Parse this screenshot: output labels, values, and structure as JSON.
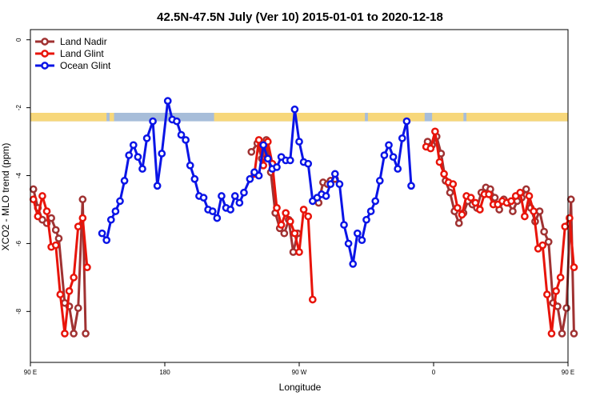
{
  "chart_data": {
    "type": "line",
    "title": "42.5N-47.5N July (Ver 10)   2015-01-01 to 2020-12-18",
    "xlabel": "Longitude",
    "ylabel": "XCO2 - MLO trend (ppm)",
    "xlim": [
      90,
      450
    ],
    "ylim": [
      -9.5,
      0.3
    ],
    "x_ticks": [
      {
        "value": 90,
        "label": "90 E"
      },
      {
        "value": 180,
        "label": "180"
      },
      {
        "value": 270,
        "label": "90 W"
      },
      {
        "value": 360,
        "label": "0"
      },
      {
        "value": 450,
        "label": "90 E"
      },
      {
        "value": 540,
        "label": "180"
      }
    ],
    "y_ticks": [
      0,
      -2,
      -4,
      -6,
      -8
    ],
    "grid": false,
    "legend_position": "top-left",
    "land_ocean_band": {
      "y_range": [
        -2.4,
        -2.15
      ],
      "land_color": "#f7d77a",
      "ocean_color": "#a7bdd9",
      "land_segments": [
        [
          90,
          141
        ],
        [
          143,
          146
        ],
        [
          213,
          314
        ],
        [
          316,
          354
        ],
        [
          359,
          380
        ],
        [
          382,
          476
        ],
        [
          478,
          488
        ]
      ]
    },
    "series": [
      {
        "name": "Land Nadir",
        "color": "#a03232",
        "points": [
          [
            92,
            -4.4
          ],
          [
            95,
            -4.95
          ],
          [
            98,
            -5.3
          ],
          [
            101,
            -5.4
          ],
          [
            104,
            -5.25
          ],
          [
            107,
            -5.6
          ],
          [
            109,
            -5.85
          ],
          [
            113,
            -7.75
          ],
          [
            116,
            -7.85
          ],
          [
            119,
            -8.65
          ],
          [
            122,
            -7.9
          ],
          [
            125,
            -4.7
          ],
          [
            127,
            -8.65
          ],
          [
            238,
            -3.3
          ],
          [
            242,
            -3.05
          ],
          [
            245,
            -3.5
          ],
          [
            248,
            -2.95
          ],
          [
            251,
            -3.9
          ],
          [
            254,
            -5.1
          ],
          [
            257,
            -5.55
          ],
          [
            260,
            -5.7
          ],
          [
            263,
            -5.3
          ],
          [
            266,
            -6.25
          ],
          [
            269,
            -5.7
          ],
          [
            283,
            -4.8
          ],
          [
            286,
            -4.2
          ],
          [
            289,
            -4.25
          ],
          [
            291,
            -4.15
          ],
          [
            294,
            -4.1
          ],
          [
            356,
            -3.0
          ],
          [
            359,
            -3.1
          ],
          [
            362,
            -2.85
          ],
          [
            365,
            -3.35
          ],
          [
            368,
            -4.15
          ],
          [
            371,
            -4.5
          ],
          [
            374,
            -5.05
          ],
          [
            377,
            -5.4
          ],
          [
            380,
            -5.1
          ],
          [
            383,
            -4.75
          ],
          [
            386,
            -4.85
          ],
          [
            389,
            -4.95
          ],
          [
            392,
            -4.5
          ],
          [
            395,
            -4.35
          ],
          [
            398,
            -4.4
          ],
          [
            401,
            -4.65
          ],
          [
            404,
            -5.0
          ],
          [
            407,
            -4.7
          ],
          [
            410,
            -4.8
          ],
          [
            413,
            -5.05
          ],
          [
            416,
            -4.75
          ],
          [
            419,
            -4.65
          ],
          [
            422,
            -4.4
          ],
          [
            425,
            -4.95
          ],
          [
            428,
            -5.35
          ],
          [
            431,
            -5.05
          ],
          [
            434,
            -5.65
          ],
          [
            437,
            -5.95
          ],
          [
            440,
            -7.75
          ],
          [
            443,
            -7.85
          ],
          [
            446,
            -8.65
          ],
          [
            449,
            -7.9
          ],
          [
            452,
            -4.7
          ],
          [
            454,
            -8.65
          ]
        ]
      },
      {
        "name": "Land Glint",
        "color": "#e8140a",
        "points": [
          [
            92,
            -4.7
          ],
          [
            95,
            -5.2
          ],
          [
            98,
            -4.6
          ],
          [
            101,
            -5.05
          ],
          [
            104,
            -6.1
          ],
          [
            107,
            -6.05
          ],
          [
            110,
            -7.5
          ],
          [
            113,
            -8.65
          ],
          [
            116,
            -7.4
          ],
          [
            119,
            -7.0
          ],
          [
            122,
            -5.5
          ],
          [
            125,
            -5.25
          ],
          [
            128,
            -6.7
          ],
          [
            240,
            -3.95
          ],
          [
            243,
            -2.95
          ],
          [
            246,
            -3.7
          ],
          [
            249,
            -3.0
          ],
          [
            252,
            -3.65
          ],
          [
            255,
            -4.95
          ],
          [
            258,
            -5.45
          ],
          [
            261,
            -5.1
          ],
          [
            264,
            -5.35
          ],
          [
            267,
            -5.7
          ],
          [
            270,
            -6.25
          ],
          [
            273,
            -5.0
          ],
          [
            276,
            -5.2
          ],
          [
            279,
            -7.65
          ],
          [
            355,
            -3.15
          ],
          [
            358,
            -3.2
          ],
          [
            361,
            -2.7
          ],
          [
            364,
            -3.6
          ],
          [
            367,
            -3.95
          ],
          [
            370,
            -4.2
          ],
          [
            373,
            -4.25
          ],
          [
            376,
            -4.95
          ],
          [
            379,
            -5.15
          ],
          [
            382,
            -4.6
          ],
          [
            385,
            -4.65
          ],
          [
            388,
            -4.8
          ],
          [
            391,
            -5.0
          ],
          [
            394,
            -4.55
          ],
          [
            397,
            -4.55
          ],
          [
            400,
            -4.85
          ],
          [
            403,
            -4.85
          ],
          [
            406,
            -4.75
          ],
          [
            409,
            -4.8
          ],
          [
            412,
            -4.75
          ],
          [
            415,
            -4.6
          ],
          [
            418,
            -4.5
          ],
          [
            421,
            -5.2
          ],
          [
            424,
            -4.6
          ],
          [
            427,
            -5.05
          ],
          [
            430,
            -6.15
          ],
          [
            433,
            -6.05
          ],
          [
            436,
            -7.5
          ],
          [
            439,
            -8.65
          ],
          [
            442,
            -7.4
          ],
          [
            445,
            -7.0
          ],
          [
            448,
            -5.5
          ],
          [
            451,
            -5.25
          ],
          [
            454,
            -6.7
          ]
        ]
      },
      {
        "name": "Ocean Glint",
        "color": "#0a14e6",
        "points": [
          [
            138,
            -5.7
          ],
          [
            141,
            -5.9
          ],
          [
            144,
            -5.3
          ],
          [
            147,
            -5.05
          ],
          [
            150,
            -4.75
          ],
          [
            153,
            -4.15
          ],
          [
            156,
            -3.4
          ],
          [
            159,
            -3.1
          ],
          [
            162,
            -3.45
          ],
          [
            165,
            -3.8
          ],
          [
            168,
            -2.9
          ],
          [
            172,
            -2.4
          ],
          [
            175,
            -4.3
          ],
          [
            178,
            -3.35
          ],
          [
            182,
            -1.8
          ],
          [
            185,
            -2.35
          ],
          [
            188,
            -2.4
          ],
          [
            191,
            -2.8
          ],
          [
            194,
            -2.95
          ],
          [
            197,
            -3.7
          ],
          [
            200,
            -4.1
          ],
          [
            203,
            -4.6
          ],
          [
            206,
            -4.65
          ],
          [
            209,
            -5.0
          ],
          [
            212,
            -5.05
          ],
          [
            215,
            -5.25
          ],
          [
            218,
            -4.6
          ],
          [
            221,
            -4.95
          ],
          [
            224,
            -5.0
          ],
          [
            227,
            -4.6
          ],
          [
            230,
            -4.8
          ],
          [
            233,
            -4.5
          ],
          [
            237,
            -4.1
          ],
          [
            240,
            -3.9
          ],
          [
            243,
            -4.0
          ],
          [
            246,
            -3.1
          ],
          [
            249,
            -3.5
          ],
          [
            252,
            -3.8
          ],
          [
            255,
            -3.75
          ],
          [
            258,
            -3.45
          ],
          [
            261,
            -3.55
          ],
          [
            264,
            -3.55
          ],
          [
            267,
            -2.05
          ],
          [
            270,
            -3.0
          ],
          [
            273,
            -3.6
          ],
          [
            276,
            -3.65
          ],
          [
            279,
            -4.75
          ],
          [
            282,
            -4.65
          ],
          [
            285,
            -4.55
          ],
          [
            288,
            -4.6
          ],
          [
            291,
            -4.25
          ],
          [
            294,
            -3.95
          ],
          [
            297,
            -4.25
          ],
          [
            300,
            -5.45
          ],
          [
            303,
            -6.0
          ],
          [
            306,
            -6.6
          ],
          [
            309,
            -5.7
          ],
          [
            312,
            -5.9
          ],
          [
            315,
            -5.3
          ],
          [
            318,
            -5.05
          ],
          [
            321,
            -4.75
          ],
          [
            324,
            -4.15
          ],
          [
            327,
            -3.4
          ],
          [
            330,
            -3.1
          ],
          [
            333,
            -3.45
          ],
          [
            336,
            -3.8
          ],
          [
            339,
            -2.9
          ],
          [
            342,
            -2.4
          ],
          [
            345,
            -4.3
          ]
        ]
      }
    ]
  }
}
